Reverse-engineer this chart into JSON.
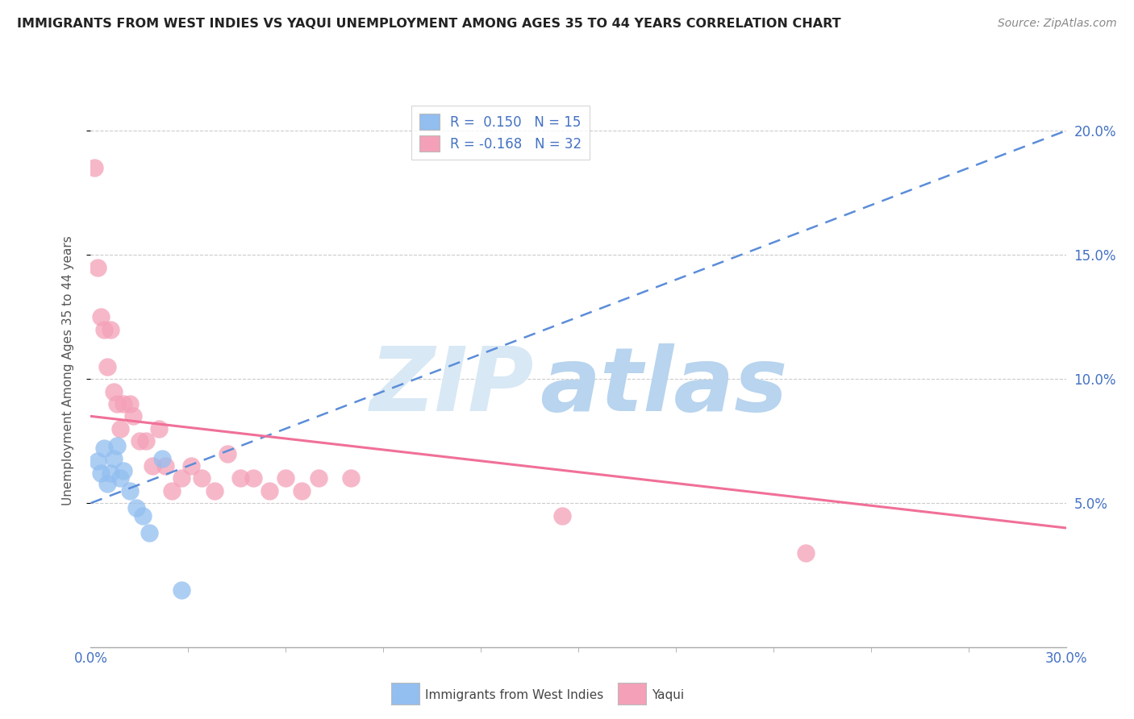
{
  "title": "IMMIGRANTS FROM WEST INDIES VS YAQUI UNEMPLOYMENT AMONG AGES 35 TO 44 YEARS CORRELATION CHART",
  "source": "Source: ZipAtlas.com",
  "ylabel": "Unemployment Among Ages 35 to 44 years",
  "xlim": [
    0.0,
    0.3
  ],
  "ylim": [
    -0.008,
    0.215
  ],
  "xtick_positions": [
    0.0,
    0.3
  ],
  "xtick_labels": [
    "0.0%",
    "30.0%"
  ],
  "xtick_minor": [
    0.03,
    0.06,
    0.09,
    0.12,
    0.15,
    0.18,
    0.21,
    0.24,
    0.27
  ],
  "ytick_positions": [
    0.05,
    0.1,
    0.15,
    0.2
  ],
  "ytick_labels": [
    "5.0%",
    "10.0%",
    "15.0%",
    "20.0%"
  ],
  "legend_R1": "R =  0.150",
  "legend_N1": "N = 15",
  "legend_R2": "R = -0.168",
  "legend_N2": "N = 32",
  "blue_color": "#92BEF0",
  "pink_color": "#F4A0B8",
  "blue_line_color": "#5B8DD9",
  "pink_line_color": "#F07098",
  "axis_color": "#AAAAAA",
  "tick_label_color": "#4472C4",
  "watermark_ZIP": "ZIP",
  "watermark_atlas": "atlas",
  "watermark_color_ZIP": "#D8E8F5",
  "watermark_color_atlas": "#B8D4EE",
  "blue_scatter_x": [
    0.002,
    0.003,
    0.004,
    0.005,
    0.006,
    0.007,
    0.008,
    0.009,
    0.01,
    0.012,
    0.014,
    0.016,
    0.018,
    0.022,
    0.028
  ],
  "blue_scatter_y": [
    0.067,
    0.062,
    0.072,
    0.058,
    0.062,
    0.068,
    0.073,
    0.06,
    0.063,
    0.055,
    0.048,
    0.045,
    0.038,
    0.068,
    0.015
  ],
  "pink_scatter_x": [
    0.001,
    0.002,
    0.003,
    0.004,
    0.005,
    0.006,
    0.007,
    0.008,
    0.009,
    0.01,
    0.012,
    0.013,
    0.015,
    0.017,
    0.019,
    0.021,
    0.023,
    0.025,
    0.028,
    0.031,
    0.034,
    0.038,
    0.042,
    0.046,
    0.05,
    0.055,
    0.06,
    0.065,
    0.07,
    0.08,
    0.145,
    0.22
  ],
  "pink_scatter_y": [
    0.185,
    0.145,
    0.125,
    0.12,
    0.105,
    0.12,
    0.095,
    0.09,
    0.08,
    0.09,
    0.09,
    0.085,
    0.075,
    0.075,
    0.065,
    0.08,
    0.065,
    0.055,
    0.06,
    0.065,
    0.06,
    0.055,
    0.07,
    0.06,
    0.06,
    0.055,
    0.06,
    0.055,
    0.06,
    0.06,
    0.045,
    0.03
  ],
  "blue_line_x0": 0.0,
  "blue_line_y0": 0.05,
  "blue_line_x1": 0.3,
  "blue_line_y1": 0.2,
  "pink_line_x0": 0.0,
  "pink_line_y0": 0.085,
  "pink_line_x1": 0.3,
  "pink_line_y1": 0.04
}
